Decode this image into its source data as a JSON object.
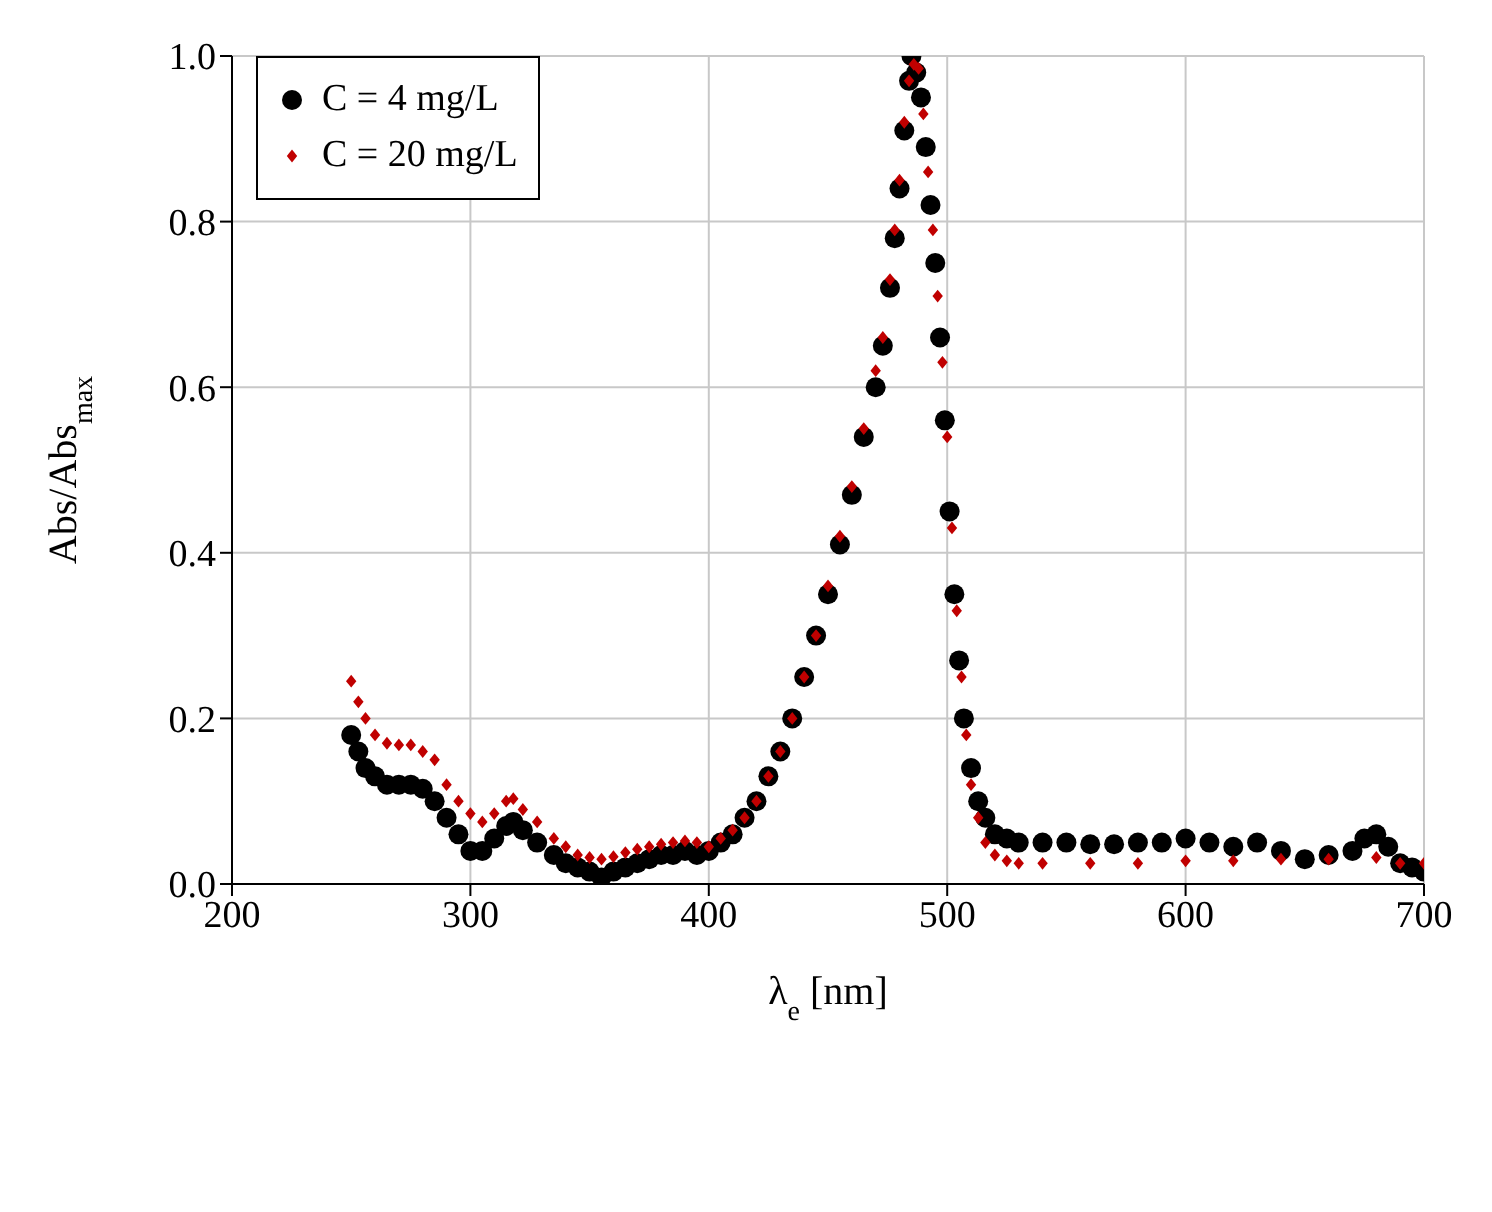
{
  "chart_data": {
    "type": "scatter",
    "xlabel": "λ$_{e}$ [nm]",
    "ylabel": "Abs/Abs$_{max}$",
    "xlim": [
      200,
      700
    ],
    "xticks": [
      200,
      300,
      400,
      500,
      600,
      700
    ],
    "ylim": [
      0,
      1
    ],
    "yticks": [
      {
        "value": 0,
        "label": "0.0"
      },
      {
        "value": 0.2,
        "label": "0.2"
      },
      {
        "value": 0.4,
        "label": "0.4"
      },
      {
        "value": 0.6,
        "label": "0.6"
      },
      {
        "value": 0.8,
        "label": "0.8"
      },
      {
        "value": 1,
        "label": "1.0"
      }
    ],
    "grid": true,
    "legend": "top left",
    "series": [
      {
        "name": "C = 4 mg/L",
        "color": "#000000",
        "marker": "circle",
        "x": [
          250,
          253,
          256,
          260,
          265,
          270,
          275,
          280,
          285,
          290,
          295,
          300,
          305,
          310,
          315,
          318,
          322,
          328,
          335,
          340,
          345,
          350,
          355,
          360,
          365,
          370,
          375,
          380,
          385,
          390,
          395,
          400,
          405,
          410,
          415,
          420,
          425,
          430,
          435,
          440,
          445,
          450,
          455,
          460,
          465,
          470,
          473,
          476,
          478,
          480,
          482,
          484,
          485,
          487,
          489,
          491,
          493,
          495,
          497,
          499,
          501,
          503,
          505,
          507,
          510,
          513,
          516,
          520,
          525,
          530,
          540,
          550,
          560,
          570,
          580,
          590,
          600,
          610,
          620,
          630,
          640,
          650,
          660,
          670,
          675,
          680,
          685,
          690,
          695,
          700
        ],
        "values": [
          0.18,
          0.16,
          0.14,
          0.13,
          0.12,
          0.12,
          0.12,
          0.115,
          0.1,
          0.08,
          0.06,
          0.04,
          0.04,
          0.055,
          0.07,
          0.075,
          0.065,
          0.05,
          0.035,
          0.025,
          0.02,
          0.015,
          0.008,
          0.015,
          0.02,
          0.025,
          0.03,
          0.035,
          0.035,
          0.04,
          0.035,
          0.04,
          0.05,
          0.06,
          0.08,
          0.1,
          0.13,
          0.16,
          0.2,
          0.25,
          0.3,
          0.35,
          0.41,
          0.47,
          0.54,
          0.6,
          0.65,
          0.72,
          0.78,
          0.84,
          0.91,
          0.97,
          1.0,
          0.98,
          0.95,
          0.89,
          0.82,
          0.75,
          0.66,
          0.56,
          0.45,
          0.35,
          0.27,
          0.2,
          0.14,
          0.1,
          0.08,
          0.06,
          0.055,
          0.05,
          0.05,
          0.05,
          0.048,
          0.048,
          0.05,
          0.05,
          0.055,
          0.05,
          0.045,
          0.05,
          0.04,
          0.03,
          0.035,
          0.04,
          0.055,
          0.06,
          0.045,
          0.025,
          0.02,
          0.015
        ]
      },
      {
        "name": "C = 20 mg/L",
        "color": "#c00000",
        "marker": "diamond",
        "x": [
          250,
          253,
          256,
          260,
          265,
          270,
          275,
          280,
          285,
          290,
          295,
          300,
          305,
          310,
          315,
          318,
          322,
          328,
          335,
          340,
          345,
          350,
          355,
          360,
          365,
          370,
          375,
          380,
          385,
          390,
          395,
          400,
          405,
          410,
          415,
          420,
          425,
          430,
          435,
          440,
          445,
          450,
          455,
          460,
          465,
          470,
          473,
          476,
          478,
          480,
          482,
          484,
          486,
          488,
          490,
          492,
          494,
          496,
          498,
          500,
          502,
          504,
          506,
          508,
          510,
          513,
          516,
          520,
          525,
          530,
          540,
          560,
          580,
          600,
          620,
          640,
          660,
          680,
          690,
          700
        ],
        "values": [
          0.245,
          0.22,
          0.2,
          0.18,
          0.17,
          0.168,
          0.168,
          0.16,
          0.15,
          0.12,
          0.1,
          0.085,
          0.075,
          0.085,
          0.1,
          0.103,
          0.09,
          0.075,
          0.055,
          0.045,
          0.035,
          0.032,
          0.03,
          0.033,
          0.038,
          0.042,
          0.045,
          0.048,
          0.05,
          0.052,
          0.05,
          0.045,
          0.055,
          0.065,
          0.08,
          0.1,
          0.13,
          0.16,
          0.2,
          0.25,
          0.3,
          0.36,
          0.42,
          0.48,
          0.55,
          0.62,
          0.66,
          0.73,
          0.79,
          0.85,
          0.92,
          0.97,
          0.99,
          0.985,
          0.93,
          0.86,
          0.79,
          0.71,
          0.63,
          0.54,
          0.43,
          0.33,
          0.25,
          0.18,
          0.12,
          0.08,
          0.05,
          0.035,
          0.028,
          0.025,
          0.025,
          0.025,
          0.025,
          0.028,
          0.028,
          0.03,
          0.03,
          0.032,
          0.025,
          0.025
        ]
      }
    ]
  }
}
